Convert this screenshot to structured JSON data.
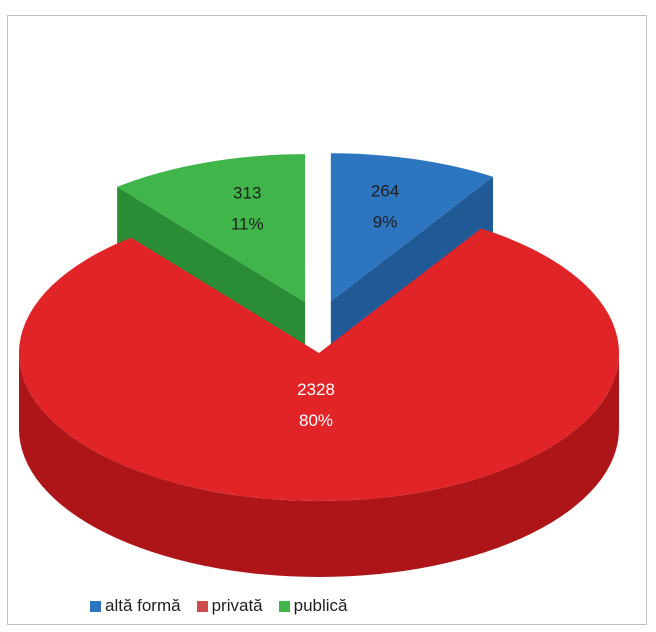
{
  "chart_data": {
    "type": "pie",
    "style": "3d-exploded",
    "title": "",
    "slices": [
      {
        "label": "altă formă",
        "value": 264,
        "percent": "9%",
        "color": "#2e75c0",
        "side_color": "#1f5a96",
        "exploded": true
      },
      {
        "label": "privată",
        "value": 2328,
        "percent": "80%",
        "color": "#e02427",
        "side_color": "#ad1518",
        "exploded": false
      },
      {
        "label": "publică",
        "value": 313,
        "percent": "11%",
        "color": "#3fb54a",
        "side_color": "#2a8c35",
        "exploded": true
      }
    ],
    "legend": {
      "position": "bottom-left",
      "items": [
        {
          "label": "altă formă",
          "color": "#2e75c0"
        },
        {
          "label": "privată",
          "color": "#cf4a4a"
        },
        {
          "label": "publică",
          "color": "#3fb54a"
        }
      ]
    }
  }
}
